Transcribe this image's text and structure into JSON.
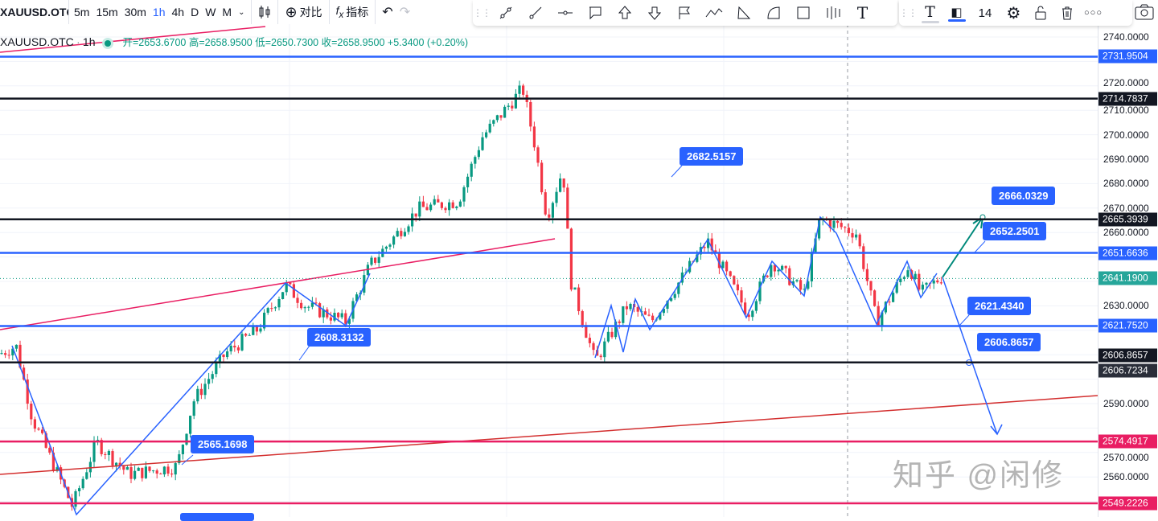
{
  "toolbar": {
    "symbol": "XAUUSD.OTC",
    "intervals": [
      "5m",
      "15m",
      "30m",
      "1h",
      "4h",
      "D",
      "W",
      "M"
    ],
    "active_interval": "1h",
    "compare_label": "对比",
    "indicators_label": "指标",
    "font_size": "14",
    "icons": [
      "candles-icon",
      "plus-circle-icon",
      "fx-icon",
      "undo-icon",
      "redo-icon"
    ],
    "drawing_icons": [
      "trend-line-icon",
      "ray-icon",
      "horizontal-line-icon",
      "callout-icon",
      "arrow-up-icon",
      "arrow-down-icon",
      "flag-icon",
      "polyline-icon",
      "triangle-icon",
      "arc-icon",
      "rectangle-icon",
      "candle-pattern-icon",
      "text-icon"
    ],
    "text_color": "#131722",
    "fill_color": "#2962ff"
  },
  "legend": {
    "symbol": "XAUUSD.OTC",
    "interval": "1h",
    "ohlc": "开=2653.6700 高=2658.9500 低=2650.7300 收=2658.9500 +5.3400 (+0.20%)"
  },
  "axis": {
    "ticks": [
      "2740.0000",
      "2720.0000",
      "2710.0000",
      "2700.0000",
      "2690.0000",
      "2680.0000",
      "2670.0000",
      "2660.0000",
      "2630.0000",
      "2590.0000",
      "2570.0000",
      "2560.0000"
    ]
  },
  "chart_data": {
    "type": "candlestick",
    "approx_close_path": [
      2610.4,
      2613.7,
      2584.1,
      2547.9,
      2574.2,
      2561.1,
      2564.3,
      2590.7,
      2610.4,
      2620.3,
      2638.4,
      2630.1,
      2623.6,
      2646.6,
      2669.6,
      2672.9,
      2699.2,
      2718.9,
      2695.9,
      2666.3,
      2686.1,
      2640.0,
      2607.1,
      2630.1,
      2623.6,
      2656.4,
      2626.8,
      2648.2,
      2635.1,
      2665.7,
      2659.7,
      2623.6,
      2646.6,
      2635.1,
      2641.6
    ],
    "last_price": "2641.1900",
    "levels": [
      {
        "price": "2731.9504",
        "color": "#2962ff"
      },
      {
        "price": "2714.7837",
        "color": "#131722"
      },
      {
        "price": "2665.3939",
        "color": "#131722"
      },
      {
        "price": "2651.6636",
        "color": "#2962ff"
      },
      {
        "price": "2621.7520",
        "color": "#2962ff"
      },
      {
        "price": "2606.8657",
        "color": "#131722"
      },
      {
        "price": "2574.4917",
        "color": "#e91e63"
      },
      {
        "price": "2549.2226",
        "color": "#e91e63"
      }
    ],
    "extra_axis_label": {
      "price": "2606.7234",
      "color": "#131722"
    },
    "annotations": [
      "2682.5157",
      "2666.0329",
      "2652.2501",
      "2621.4340",
      "2606.8657",
      "2608.3132",
      "2565.1698"
    ],
    "up_color": "#089981",
    "down_color": "#f23645"
  },
  "watermark": "知乎 @闲修"
}
